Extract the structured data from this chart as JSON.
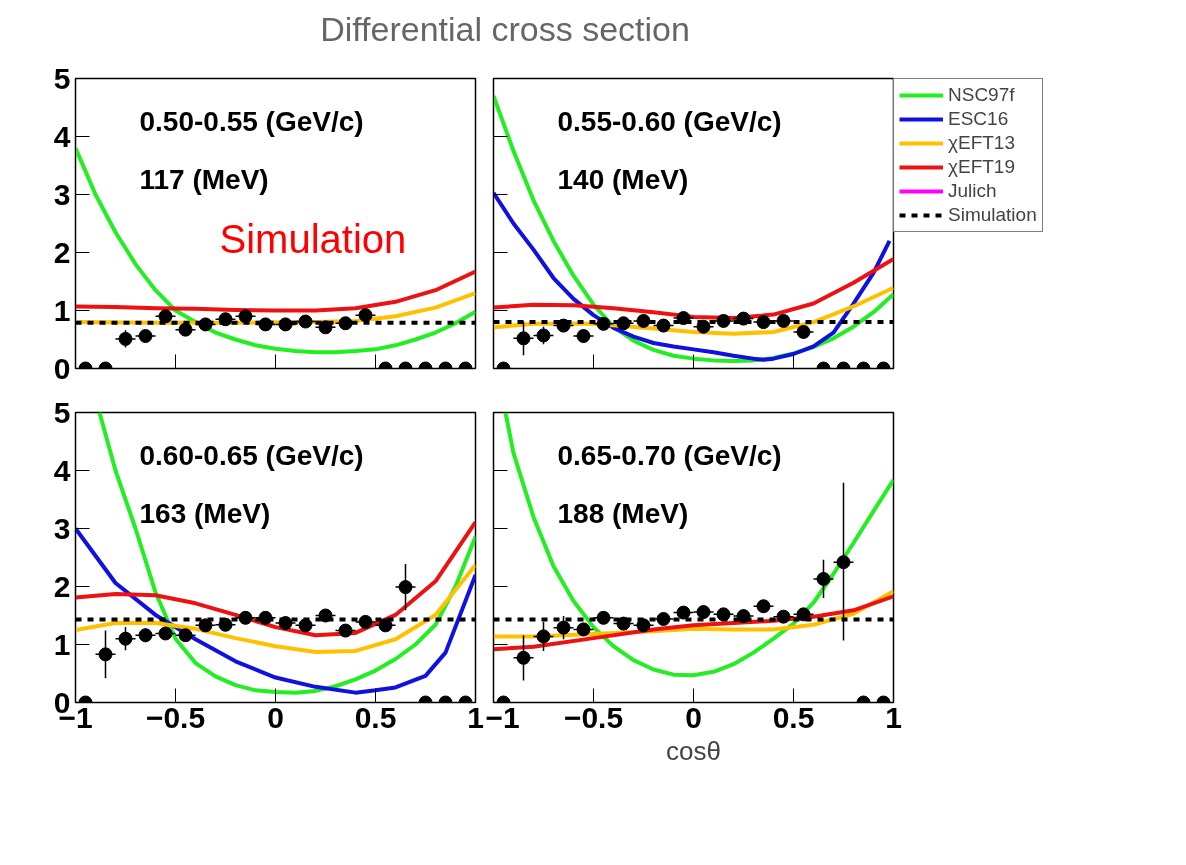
{
  "chart_data": [
    {
      "type": "line",
      "title": "Differential cross section",
      "annotations": [
        "0.50-0.55 (GeV/c)",
        "117 (MeV)",
        "Simulation"
      ],
      "xlim": [
        -1,
        1
      ],
      "ylim": [
        0,
        5
      ],
      "yticks": [
        0,
        1,
        2,
        3,
        4,
        5
      ],
      "xticks": [
        {
          "value": -1,
          "label": null
        },
        {
          "value": -0.5,
          "label": null
        },
        {
          "value": 0,
          "label": null
        },
        {
          "value": 0.5,
          "label": null
        },
        {
          "value": 1,
          "label": null
        }
      ],
      "tick_labels": "y",
      "grid": false,
      "series": [
        {
          "type": "line",
          "color": "#22ee22",
          "x": [
            -1,
            -0.9,
            -0.8,
            -0.7,
            -0.6,
            -0.5,
            -0.4,
            -0.3,
            -0.2,
            -0.1,
            0,
            0.1,
            0.2,
            0.3,
            0.4,
            0.5,
            0.6,
            0.7,
            0.8,
            0.9,
            1
          ],
          "values": [
            3.8,
            3.0,
            2.35,
            1.8,
            1.35,
            1.0,
            0.8,
            0.62,
            0.5,
            0.4,
            0.34,
            0.3,
            0.28,
            0.28,
            0.3,
            0.33,
            0.4,
            0.5,
            0.62,
            0.78,
            0.98
          ]
        },
        {
          "type": "line",
          "color": "#ffc000",
          "x": [
            -1,
            -0.6,
            -0.2,
            0.2,
            0.4,
            0.6,
            0.8,
            1
          ],
          "values": [
            0.8,
            0.79,
            0.79,
            0.8,
            0.82,
            0.9,
            1.05,
            1.3
          ]
        },
        {
          "type": "line",
          "color": "#ee1111",
          "x": [
            -1,
            -0.8,
            -0.6,
            -0.4,
            -0.2,
            0,
            0.2,
            0.4,
            0.6,
            0.8,
            1
          ],
          "values": [
            1.07,
            1.06,
            1.04,
            1.03,
            1.01,
            1.0,
            1.0,
            1.04,
            1.15,
            1.35,
            1.67
          ]
        },
        {
          "type": "line",
          "color": "#000000",
          "line_style": "dashed",
          "x": [
            -1,
            1
          ],
          "values": [
            0.79,
            0.79
          ]
        },
        {
          "type": "scatter",
          "color": "#000000",
          "marker": "circle",
          "x": [
            -0.95,
            -0.85,
            -0.75,
            -0.65,
            -0.55,
            -0.45,
            -0.35,
            -0.25,
            -0.15,
            -0.05,
            0.05,
            0.15,
            0.25,
            0.35,
            0.45,
            0.55,
            0.65,
            0.75,
            0.85,
            0.95
          ],
          "values": [
            0,
            0,
            0.51,
            0.56,
            0.9,
            0.67,
            0.76,
            0.85,
            0.9,
            0.76,
            0.76,
            0.81,
            0.71,
            0.78,
            0.92,
            0,
            0,
            0,
            0,
            0
          ],
          "errors": [
            null,
            null,
            0.15,
            0.1,
            0.08,
            0.06,
            0.05,
            0.05,
            0.05,
            0.05,
            0.05,
            0.05,
            0.05,
            0.05,
            0.08,
            null,
            null,
            null,
            null,
            null
          ],
          "xerrors": [
            null,
            null,
            0.05,
            0.05,
            0.05,
            0.05,
            0.05,
            0.05,
            0.05,
            0.05,
            0.05,
            0.05,
            0.05,
            0.05,
            0.05,
            null,
            null,
            null,
            null,
            null
          ]
        }
      ]
    },
    {
      "type": "line",
      "annotations": [
        "0.55-0.60 (GeV/c)",
        "140 (MeV)"
      ],
      "xlim": [
        -1,
        1
      ],
      "ylim": [
        0,
        5
      ],
      "yticks": [
        {
          "value": 0,
          "label": null
        },
        {
          "value": 1,
          "label": null
        },
        {
          "value": 2,
          "label": null
        },
        {
          "value": 3,
          "label": null
        },
        {
          "value": 4,
          "label": null
        },
        {
          "value": 5,
          "label": null
        }
      ],
      "xticks": [
        {
          "value": -1,
          "label": null
        },
        {
          "value": -0.5,
          "label": null
        },
        {
          "value": 0,
          "label": null
        },
        {
          "value": 0.5,
          "label": null
        },
        {
          "value": 1,
          "label": null
        }
      ],
      "tick_labels": false,
      "grid": false,
      "legend": "top right",
      "series": [
        {
          "type": "line",
          "name": "NSC97f",
          "color": "#22ee22",
          "x": [
            -1,
            -0.9,
            -0.8,
            -0.7,
            -0.6,
            -0.5,
            -0.4,
            -0.3,
            -0.2,
            -0.1,
            0,
            0.1,
            0.2,
            0.3,
            0.4,
            0.5,
            0.6,
            0.7,
            0.8,
            0.9,
            1
          ],
          "values": [
            4.7,
            3.75,
            2.9,
            2.2,
            1.6,
            1.1,
            0.72,
            0.48,
            0.32,
            0.22,
            0.17,
            0.14,
            0.13,
            0.14,
            0.18,
            0.26,
            0.37,
            0.52,
            0.72,
            0.97,
            1.28
          ]
        },
        {
          "type": "line",
          "name": "ESC16",
          "color": "#1010e0",
          "x": [
            -1,
            -0.9,
            -0.8,
            -0.7,
            -0.6,
            -0.5,
            -0.4,
            -0.3,
            -0.2,
            -0.1,
            0,
            0.1,
            0.2,
            0.3,
            0.35,
            0.4,
            0.5,
            0.6,
            0.7,
            0.8,
            0.9,
            0.98
          ],
          "values": [
            3.03,
            2.5,
            2.05,
            1.56,
            1.2,
            0.92,
            0.7,
            0.55,
            0.44,
            0.38,
            0.33,
            0.28,
            0.22,
            0.17,
            0.15,
            0.17,
            0.25,
            0.38,
            0.62,
            1.12,
            1.65,
            2.2
          ]
        },
        {
          "type": "line",
          "name": "χEFT13",
          "color": "#ffc000",
          "x": [
            -1,
            -0.8,
            -0.5,
            -0.2,
            0,
            0.2,
            0.4,
            0.6,
            0.8,
            1
          ],
          "values": [
            0.71,
            0.77,
            0.77,
            0.69,
            0.63,
            0.6,
            0.63,
            0.8,
            1.07,
            1.39
          ]
        },
        {
          "type": "line",
          "name": "χEFT19",
          "color": "#ee1111",
          "x": [
            -1,
            -0.8,
            -0.6,
            -0.4,
            -0.2,
            0,
            0.2,
            0.4,
            0.6,
            0.8,
            1
          ],
          "values": [
            1.05,
            1.1,
            1.09,
            1.04,
            0.97,
            0.89,
            0.87,
            0.93,
            1.12,
            1.48,
            1.89
          ]
        },
        {
          "type": "line",
          "name": "Julich",
          "color": "#ff00ff"
        },
        {
          "type": "line",
          "name": "Simulation",
          "color": "#000000",
          "line_style": "dashed",
          "x": [
            -1,
            1
          ],
          "values": [
            0.8,
            0.8
          ]
        },
        {
          "type": "scatter",
          "color": "#000000",
          "marker": "circle",
          "x": [
            -0.95,
            -0.85,
            -0.75,
            -0.65,
            -0.55,
            -0.45,
            -0.35,
            -0.25,
            -0.15,
            -0.05,
            0.05,
            0.15,
            0.25,
            0.35,
            0.45,
            0.55,
            0.65,
            0.75,
            0.85,
            0.95
          ],
          "values": [
            0,
            0.52,
            0.57,
            0.74,
            0.56,
            0.77,
            0.78,
            0.82,
            0.74,
            0.87,
            0.72,
            0.82,
            0.86,
            0.8,
            0.82,
            0.63,
            0,
            0,
            0,
            0
          ],
          "errors": [
            null,
            0.29,
            0.15,
            0.1,
            0.05,
            0.05,
            0.05,
            0.05,
            0.05,
            0.05,
            0.05,
            0.05,
            0.05,
            0.05,
            0.05,
            0.1,
            null,
            null,
            null,
            null
          ],
          "xerrors": [
            null,
            0.05,
            0.05,
            0.05,
            0.05,
            0.05,
            0.05,
            0.05,
            0.05,
            0.05,
            0.05,
            0.05,
            0.05,
            0.05,
            0.05,
            0.05,
            null,
            null,
            null,
            null
          ]
        }
      ]
    },
    {
      "type": "line",
      "annotations": [
        "0.60-0.65 (GeV/c)",
        "163 (MeV)"
      ],
      "xlim": [
        -1,
        1
      ],
      "ylim": [
        0,
        5
      ],
      "yticks": [
        0,
        1,
        2,
        3,
        4,
        5
      ],
      "xticks": [
        {
          "value": -1,
          "label": "−1"
        },
        {
          "value": -0.5,
          "label": "−0.5"
        },
        0,
        0.5,
        1
      ],
      "grid": false,
      "series": [
        {
          "type": "line",
          "color": "#22ee22",
          "x": [
            -0.88,
            -0.8,
            -0.7,
            -0.6,
            -0.5,
            -0.4,
            -0.3,
            -0.2,
            -0.1,
            0,
            0.1,
            0.2,
            0.3,
            0.4,
            0.5,
            0.6,
            0.7,
            0.8,
            0.9,
            1
          ],
          "values": [
            5.0,
            4.0,
            3.0,
            1.9,
            1.1,
            0.68,
            0.45,
            0.3,
            0.21,
            0.18,
            0.17,
            0.2,
            0.28,
            0.4,
            0.55,
            0.75,
            1.0,
            1.34,
            2.0,
            2.86
          ]
        },
        {
          "type": "line",
          "color": "#1010e0",
          "x": [
            -1,
            -0.8,
            -0.6,
            -0.4,
            -0.2,
            0,
            0.2,
            0.4,
            0.5,
            0.6,
            0.75,
            0.85,
            1
          ],
          "values": [
            3.0,
            2.06,
            1.51,
            1.09,
            0.71,
            0.43,
            0.27,
            0.17,
            0.21,
            0.26,
            0.46,
            0.86,
            2.2
          ]
        },
        {
          "type": "line",
          "color": "#ffc000",
          "x": [
            -1,
            -0.8,
            -0.6,
            -0.4,
            -0.2,
            0,
            0.2,
            0.4,
            0.6,
            0.8,
            1
          ],
          "values": [
            1.25,
            1.37,
            1.37,
            1.27,
            1.11,
            0.97,
            0.87,
            0.89,
            1.09,
            1.51,
            2.37
          ]
        },
        {
          "type": "line",
          "color": "#ee1111",
          "x": [
            -1,
            -0.8,
            -0.6,
            -0.4,
            -0.2,
            0,
            0.2,
            0.4,
            0.6,
            0.8,
            1
          ],
          "values": [
            1.81,
            1.87,
            1.85,
            1.71,
            1.51,
            1.3,
            1.16,
            1.2,
            1.51,
            2.09,
            3.11
          ]
        },
        {
          "type": "line",
          "color": "#000000",
          "line_style": "dashed",
          "x": [
            -1,
            1
          ],
          "values": [
            1.43,
            1.43
          ]
        },
        {
          "type": "scatter",
          "color": "#000000",
          "marker": "circle",
          "x": [
            -0.95,
            -0.85,
            -0.75,
            -0.65,
            -0.55,
            -0.45,
            -0.35,
            -0.25,
            -0.15,
            -0.05,
            0.05,
            0.15,
            0.25,
            0.35,
            0.45,
            0.55,
            0.65,
            0.75,
            0.85,
            0.95
          ],
          "values": [
            0,
            0.83,
            1.1,
            1.16,
            1.19,
            1.16,
            1.33,
            1.34,
            1.46,
            1.46,
            1.37,
            1.33,
            1.5,
            1.24,
            1.39,
            1.33,
            1.99,
            0,
            0,
            0
          ],
          "errors": [
            null,
            0.41,
            0.2,
            0.12,
            0.1,
            0.06,
            0.06,
            0.06,
            0.06,
            0.06,
            0.06,
            0.06,
            0.06,
            0.06,
            0.06,
            0.1,
            0.4,
            null,
            null,
            null
          ],
          "xerrors": [
            null,
            0.05,
            0.05,
            0.05,
            0.05,
            0.05,
            0.05,
            0.05,
            0.05,
            0.05,
            0.05,
            0.05,
            0.05,
            0.05,
            0.05,
            0.05,
            0.05,
            null,
            null,
            null
          ]
        }
      ]
    },
    {
      "type": "line",
      "annotations": [
        "0.65-0.70 (GeV/c)",
        "188 (MeV)"
      ],
      "xlabel": "cosθ",
      "xlim": [
        -1,
        1
      ],
      "ylim": [
        0,
        5
      ],
      "yticks": [
        {
          "value": 0,
          "label": null
        },
        {
          "value": 1,
          "label": null
        },
        {
          "value": 2,
          "label": null
        },
        {
          "value": 3,
          "label": null
        },
        {
          "value": 4,
          "label": null
        },
        {
          "value": 5,
          "label": null
        }
      ],
      "xticks": [
        {
          "value": -1,
          "label": "−1"
        },
        {
          "value": -0.5,
          "label": "−0.5"
        },
        0,
        0.5,
        1
      ],
      "tick_labels": "x",
      "grid": false,
      "series": [
        {
          "type": "line",
          "color": "#22ee22",
          "x": [
            -0.94,
            -0.9,
            -0.8,
            -0.7,
            -0.6,
            -0.5,
            -0.4,
            -0.3,
            -0.2,
            -0.1,
            0,
            0.1,
            0.2,
            0.3,
            0.4,
            0.5,
            0.6,
            0.7,
            0.8,
            0.9,
            1
          ],
          "values": [
            5.0,
            4.3,
            3.2,
            2.35,
            1.75,
            1.3,
            0.97,
            0.73,
            0.57,
            0.48,
            0.47,
            0.53,
            0.66,
            0.86,
            1.1,
            1.36,
            1.72,
            2.22,
            2.75,
            3.3,
            3.84
          ]
        },
        {
          "type": "line",
          "color": "#ffc000",
          "x": [
            -1,
            -0.8,
            -0.5,
            -0.2,
            0,
            0.2,
            0.4,
            0.6,
            0.8,
            1
          ],
          "values": [
            1.14,
            1.14,
            1.18,
            1.23,
            1.27,
            1.26,
            1.26,
            1.34,
            1.53,
            1.92
          ]
        },
        {
          "type": "line",
          "color": "#ee1111",
          "x": [
            -1,
            -0.8,
            -0.5,
            -0.2,
            0,
            0.2,
            0.4,
            0.6,
            0.8,
            1
          ],
          "values": [
            0.92,
            0.96,
            1.11,
            1.26,
            1.33,
            1.37,
            1.41,
            1.48,
            1.59,
            1.83
          ]
        },
        {
          "type": "line",
          "color": "#000000",
          "line_style": "dashed",
          "x": [
            -1,
            1
          ],
          "values": [
            1.43,
            1.43
          ]
        },
        {
          "type": "scatter",
          "color": "#000000",
          "marker": "circle",
          "x": [
            -0.95,
            -0.85,
            -0.75,
            -0.65,
            -0.55,
            -0.45,
            -0.35,
            -0.25,
            -0.15,
            -0.05,
            0.05,
            0.15,
            0.25,
            0.35,
            0.45,
            0.55,
            0.65,
            0.75,
            0.85,
            0.95
          ],
          "values": [
            0,
            0.77,
            1.14,
            1.29,
            1.26,
            1.46,
            1.36,
            1.33,
            1.44,
            1.55,
            1.56,
            1.52,
            1.49,
            1.66,
            1.48,
            1.52,
            2.13,
            2.42,
            0,
            0
          ],
          "errors": [
            null,
            0.39,
            0.25,
            0.2,
            0.1,
            0.1,
            0.07,
            0.07,
            0.07,
            0.07,
            0.07,
            0.07,
            0.07,
            0.07,
            0.07,
            0.1,
            0.33,
            [
              1.07,
              3.79
            ],
            null,
            null
          ],
          "xerrors": [
            null,
            0.05,
            0.05,
            0.05,
            0.05,
            0.05,
            0.05,
            0.05,
            0.05,
            0.05,
            0.05,
            0.05,
            0.05,
            0.05,
            0.05,
            0.05,
            0.05,
            0.05,
            null,
            null
          ]
        }
      ]
    }
  ]
}
